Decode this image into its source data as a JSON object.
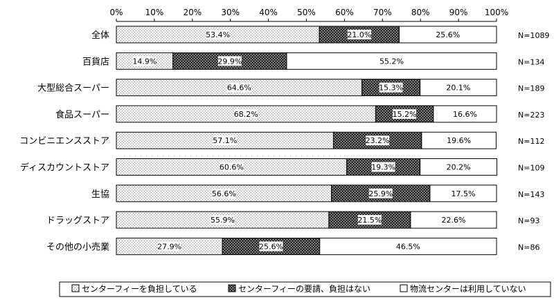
{
  "chart_data": {
    "type": "bar",
    "orientation": "horizontal",
    "stacked": "percent",
    "xlim": [
      0,
      100
    ],
    "x_ticks": [
      "0%",
      "10%",
      "20%",
      "30%",
      "40%",
      "50%",
      "60%",
      "70%",
      "80%",
      "90%",
      "100%"
    ],
    "categories": [
      "全体",
      "百貨店",
      "大型総合スーパー",
      "食品スーパー",
      "コンビニエンスストア",
      "ディスカウントストア",
      "生協",
      "ドラッグストア",
      "その他の小売業"
    ],
    "n_labels": [
      "N=1089",
      "N=134",
      "N=189",
      "N=223",
      "N=112",
      "N=109",
      "N=143",
      "N=93",
      "N=86"
    ],
    "series": [
      {
        "name": "センターフィーを負担している",
        "pattern": "light-dots",
        "values": [
          53.4,
          14.9,
          64.6,
          68.2,
          57.1,
          60.6,
          56.6,
          55.9,
          27.9
        ],
        "labels": [
          "53.4%",
          "14.9%",
          "64.6%",
          "68.2%",
          "57.1%",
          "60.6%",
          "56.6%",
          "55.9%",
          "27.9%"
        ]
      },
      {
        "name": "センターフィーの要請、負担はない",
        "pattern": "dark-crosshatch",
        "values": [
          21.0,
          29.9,
          15.3,
          15.2,
          23.2,
          19.3,
          25.9,
          21.5,
          25.6
        ],
        "labels": [
          "21.0%",
          "29.9%",
          "15.3%",
          "15.2%",
          "23.2%",
          "19.3%",
          "25.9%",
          "21.5%",
          "25.6%"
        ]
      },
      {
        "name": "物流センターは利用していない",
        "pattern": "white",
        "values": [
          25.6,
          55.2,
          20.1,
          16.6,
          19.6,
          20.2,
          17.5,
          22.6,
          46.5
        ],
        "labels": [
          "25.6%",
          "55.2%",
          "20.1%",
          "16.6%",
          "19.6%",
          "20.2%",
          "17.5%",
          "22.6%",
          "46.5%"
        ]
      }
    ],
    "legend_position": "bottom",
    "grid": false
  }
}
